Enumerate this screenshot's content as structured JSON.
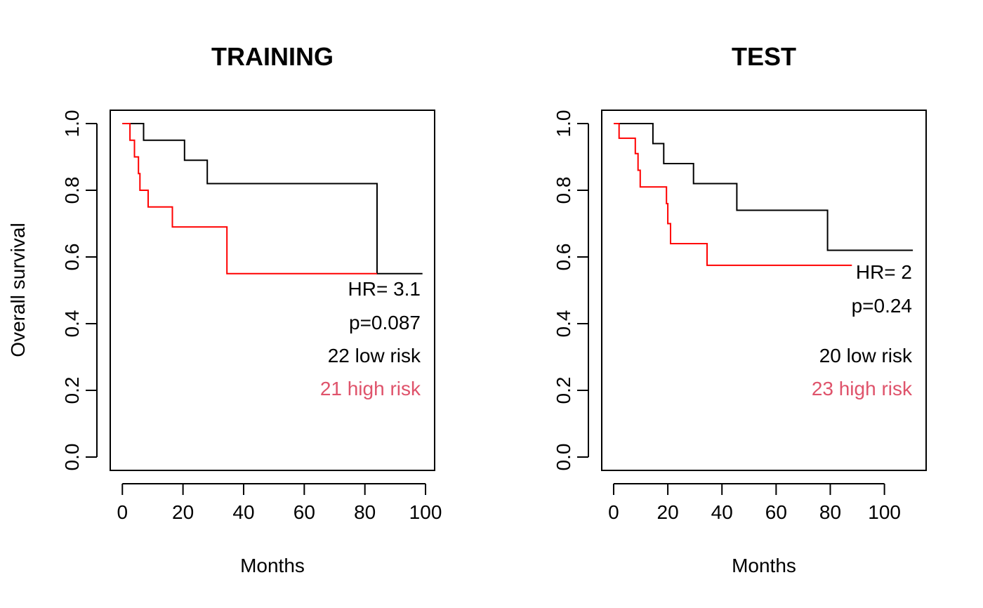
{
  "colors": {
    "low_risk_line": "#000000",
    "high_risk_line": "#ff0000",
    "high_risk_text": "#df536b",
    "axis": "#000000",
    "background": "#ffffff"
  },
  "chart_data": [
    {
      "type": "line",
      "subtype": "kaplan-meier step",
      "title": "TRAINING",
      "xlabel": "Months",
      "ylabel": "Overall survival",
      "xlim": [
        -4,
        103
      ],
      "ylim": [
        -0.04,
        1.04
      ],
      "xticks": [
        0,
        20,
        40,
        60,
        80,
        100
      ],
      "yticks": [
        0.0,
        0.2,
        0.4,
        0.6,
        0.8,
        1.0
      ],
      "xtick_labels": [
        "0",
        "20",
        "40",
        "60",
        "80",
        "100"
      ],
      "ytick_labels": [
        "0.0",
        "0.2",
        "0.4",
        "0.6",
        "0.8",
        "1.0"
      ],
      "grid": false,
      "series": [
        {
          "name": "22 low risk",
          "color": "#000000",
          "x": [
            0,
            7,
            7,
            20.5,
            20.5,
            28,
            28,
            84,
            84,
            99
          ],
          "y": [
            1.0,
            1.0,
            0.95,
            0.95,
            0.89,
            0.89,
            0.82,
            0.82,
            0.55,
            0.55
          ]
        },
        {
          "name": "21 high risk",
          "color": "#ff0000",
          "x": [
            0,
            2.5,
            2.5,
            4,
            4,
            5.3,
            5.3,
            5.8,
            5.8,
            8.5,
            8.5,
            16.5,
            16.5,
            34.5,
            34.5,
            84
          ],
          "y": [
            1.0,
            1.0,
            0.95,
            0.95,
            0.9,
            0.9,
            0.85,
            0.85,
            0.8,
            0.8,
            0.75,
            0.75,
            0.69,
            0.69,
            0.55,
            0.55
          ]
        }
      ],
      "annotations": {
        "hr": "HR= 3.1",
        "p": "p=0.087",
        "low_label": "22 low risk",
        "high_label": "21 high risk"
      }
    },
    {
      "type": "line",
      "subtype": "kaplan-meier step",
      "title": "TEST",
      "xlabel": "Months",
      "ylabel": "",
      "xlim": [
        -4.4,
        115.4
      ],
      "ylim": [
        -0.04,
        1.04
      ],
      "xticks": [
        0,
        20,
        40,
        60,
        80,
        100
      ],
      "yticks": [
        0.0,
        0.2,
        0.4,
        0.6,
        0.8,
        1.0
      ],
      "xtick_labels": [
        "0",
        "20",
        "40",
        "60",
        "80",
        "100"
      ],
      "ytick_labels": [
        "0.0",
        "0.2",
        "0.4",
        "0.6",
        "0.8",
        "1.0"
      ],
      "grid": false,
      "series": [
        {
          "name": "20 low risk",
          "color": "#000000",
          "x": [
            0,
            14.5,
            14.5,
            18.5,
            18.5,
            29.5,
            29.5,
            45.5,
            45.5,
            79,
            79,
            110.5
          ],
          "y": [
            1.0,
            1.0,
            0.94,
            0.94,
            0.88,
            0.88,
            0.82,
            0.82,
            0.74,
            0.74,
            0.62,
            0.62
          ]
        },
        {
          "name": "23 high risk",
          "color": "#ff0000",
          "x": [
            0,
            2,
            2,
            8,
            8,
            9,
            9,
            9.8,
            9.8,
            19.5,
            19.5,
            20,
            20,
            21,
            21,
            34.5,
            34.5,
            88
          ],
          "y": [
            1.0,
            1.0,
            0.956,
            0.956,
            0.91,
            0.91,
            0.86,
            0.86,
            0.81,
            0.81,
            0.76,
            0.76,
            0.7,
            0.7,
            0.64,
            0.64,
            0.575,
            0.575
          ]
        }
      ],
      "annotations": {
        "hr": "HR= 2",
        "p": "p=0.24",
        "low_label": "20 low risk",
        "high_label": "23 high risk"
      }
    }
  ]
}
